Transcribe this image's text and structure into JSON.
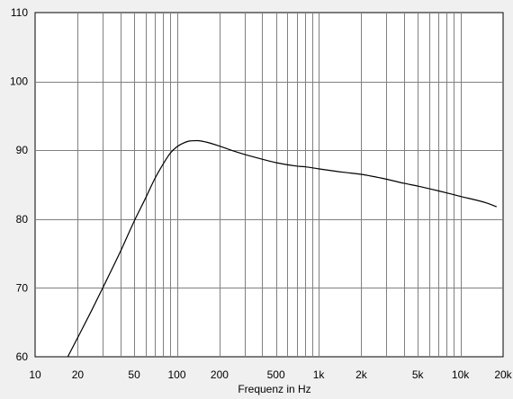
{
  "chart_data": {
    "type": "line",
    "title": "",
    "xlabel": "Frequenz in Hz",
    "ylabel": "",
    "x_scale": "log",
    "xlim": [
      10,
      20000
    ],
    "ylim": [
      60,
      110
    ],
    "grid": true,
    "x_ticks": [
      {
        "value": 10,
        "label": "10"
      },
      {
        "value": 20,
        "label": "20"
      },
      {
        "value": 50,
        "label": "50"
      },
      {
        "value": 100,
        "label": "100"
      },
      {
        "value": 200,
        "label": "200"
      },
      {
        "value": 500,
        "label": "500"
      },
      {
        "value": 1000,
        "label": "1k"
      },
      {
        "value": 2000,
        "label": "2k"
      },
      {
        "value": 5000,
        "label": "5k"
      },
      {
        "value": 10000,
        "label": "10k"
      },
      {
        "value": 20000,
        "label": "20k"
      }
    ],
    "y_ticks": [
      {
        "value": 60,
        "label": "60"
      },
      {
        "value": 70,
        "label": "70"
      },
      {
        "value": 80,
        "label": "80"
      },
      {
        "value": 90,
        "label": "90"
      },
      {
        "value": 100,
        "label": "100"
      },
      {
        "value": 110,
        "label": "110"
      }
    ],
    "series": [
      {
        "line_color": "#000000",
        "points": [
          [
            17,
            60.0
          ],
          [
            20,
            62.8
          ],
          [
            25,
            66.7
          ],
          [
            30,
            70.0
          ],
          [
            40,
            75.3
          ],
          [
            50,
            79.7
          ],
          [
            60,
            83.0
          ],
          [
            70,
            85.9
          ],
          [
            80,
            88.0
          ],
          [
            90,
            89.6
          ],
          [
            100,
            90.5
          ],
          [
            110,
            91.0
          ],
          [
            120,
            91.3
          ],
          [
            140,
            91.4
          ],
          [
            160,
            91.2
          ],
          [
            200,
            90.6
          ],
          [
            250,
            89.9
          ],
          [
            300,
            89.4
          ],
          [
            400,
            88.7
          ],
          [
            500,
            88.2
          ],
          [
            700,
            87.7
          ],
          [
            800,
            87.6
          ],
          [
            1000,
            87.3
          ],
          [
            1500,
            86.8
          ],
          [
            2000,
            86.5
          ],
          [
            3000,
            85.8
          ],
          [
            4000,
            85.2
          ],
          [
            5000,
            84.8
          ],
          [
            7000,
            84.1
          ],
          [
            10000,
            83.3
          ],
          [
            15000,
            82.4
          ],
          [
            18000,
            81.8
          ]
        ]
      }
    ]
  }
}
